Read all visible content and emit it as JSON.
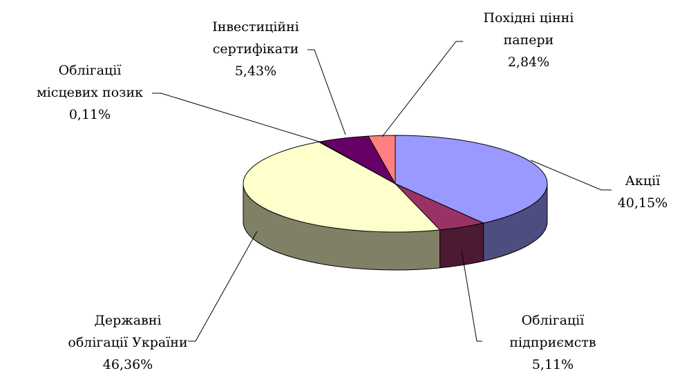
{
  "chart_data": {
    "type": "pie3d",
    "categories": [
      "Акції",
      "Облігації\nпідприємств",
      "Державні\nоблігації України",
      "Облігації\nмісцевих позик",
      "Інвестиційні\nсертифікати",
      "Похідні цінні\nпапери"
    ],
    "values": [
      40.15,
      5.11,
      46.36,
      0.11,
      5.43,
      2.84
    ],
    "value_labels": [
      "40,15%",
      "5,11%",
      "46,36%",
      "0,11%",
      "5,43%",
      "2,84%"
    ],
    "colors": [
      "#9999ff",
      "#993366",
      "#ffffcc",
      "#ccffff",
      "#660066",
      "#ff8080"
    ]
  }
}
